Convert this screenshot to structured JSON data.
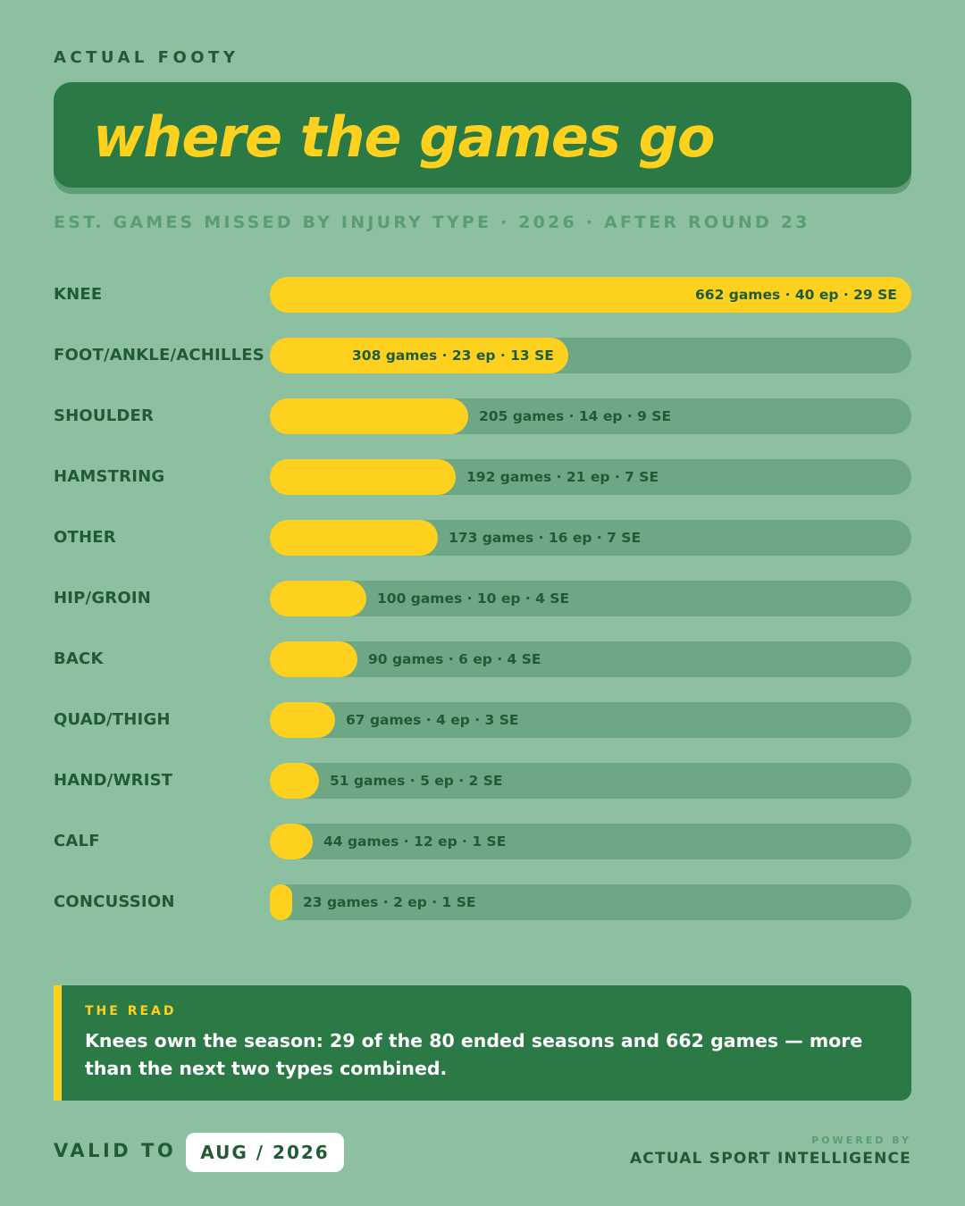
{
  "brand": "ACTUAL FOOTY",
  "title": "where the games go",
  "subtitle": "EST. GAMES MISSED BY INJURY TYPE · 2026 · AFTER ROUND 23",
  "colors": {
    "background": "#8dc0a0",
    "header_green": "#2b7a46",
    "bar_yellow": "#ffd11f",
    "track_green": "#6da785",
    "text_dark": "#1f5b35"
  },
  "chart_data": {
    "type": "bar",
    "orientation": "horizontal",
    "title": "where the games go",
    "subtitle": "EST. GAMES MISSED BY INJURY TYPE · 2026 · AFTER ROUND 23",
    "xlim": [
      0,
      662
    ],
    "grid": false,
    "categories": [
      "KNEE",
      "FOOT/ANKLE/ACHILLES",
      "SHOULDER",
      "HAMSTRING",
      "OTHER",
      "HIP/GROIN",
      "BACK",
      "QUAD/THIGH",
      "HAND/WRIST",
      "CALF",
      "CONCUSSION"
    ],
    "values": [
      662,
      308,
      205,
      192,
      173,
      100,
      90,
      67,
      51,
      44,
      23
    ],
    "labels": [
      "662 games · 40 ep · 29 SE",
      "308 games · 23 ep · 13 SE",
      "205 games · 14 ep · 9 SE",
      "192 games · 21 ep · 7 SE",
      "173 games · 16 ep · 7 SE",
      "100 games · 10 ep · 4 SE",
      "90 games · 6 ep · 4 SE",
      "67 games · 4 ep · 3 SE",
      "51 games · 5 ep · 2 SE",
      "44 games · 12 ep · 1 SE",
      "23 games · 2 ep · 1 SE"
    ]
  },
  "read": {
    "kicker": "THE READ",
    "text": "Knees own the season: 29 of the 80 ended seasons and 662 games — more than the next two types combined."
  },
  "footer": {
    "valid_label": "VALID TO",
    "valid_value": "AUG / 2026",
    "powered_by": "POWERED BY",
    "company": "ACTUAL SPORT INTELLIGENCE"
  }
}
